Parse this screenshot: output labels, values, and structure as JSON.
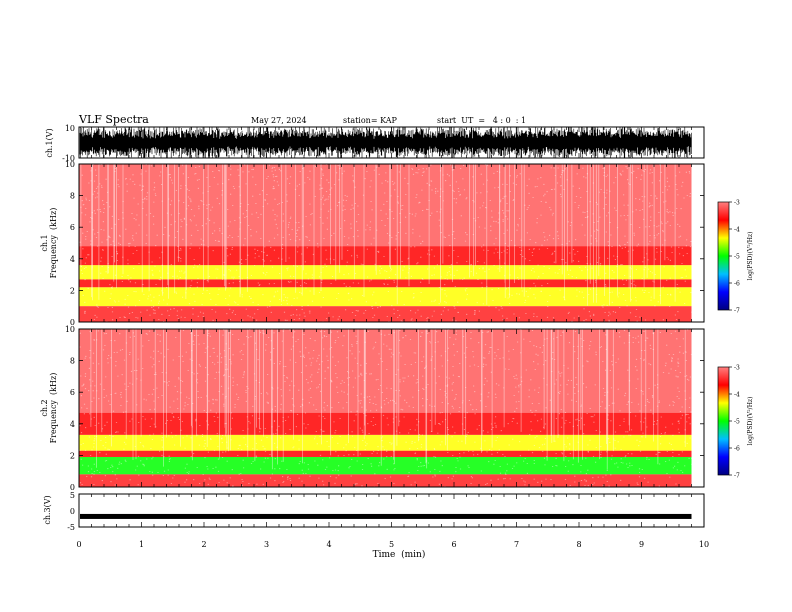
{
  "header": {
    "title": "VLF Spectra",
    "date": "May 27, 2024",
    "station": "station= KAP",
    "start": "start  UT  =   4 : 0  : 1"
  },
  "colors": {
    "spectrogram_stops": [
      "#000080",
      "#0000ff",
      "#00bfff",
      "#00ff00",
      "#ffff00",
      "#ff0000",
      "#ff8080",
      "#ffffff"
    ]
  },
  "chart_data": [
    {
      "type": "line",
      "name": "ch1-waveform",
      "ylabel": "ch.1(V)",
      "yticks": [
        "10",
        "-10"
      ],
      "ylim": [
        -10,
        10
      ],
      "xlim": [
        0,
        10
      ],
      "x_end": 9.8,
      "description_of_signal": "dense noise filling range"
    },
    {
      "type": "heatmap",
      "name": "ch1-spectrogram",
      "ylabel": "ch.1",
      "ylabel2": "Frequency  (kHz)",
      "yticks": [
        "0",
        "2",
        "4",
        "6",
        "8",
        "10"
      ],
      "ylim": [
        0,
        10
      ],
      "xlim": [
        0,
        10
      ],
      "x_end": 9.8,
      "bands": [
        {
          "from": 1.0,
          "to": 2.2,
          "level": -4.5
        },
        {
          "from": 2.2,
          "to": 2.7,
          "level": -4.0
        },
        {
          "from": 2.7,
          "to": 3.6,
          "level": -4.4
        },
        {
          "from": 3.6,
          "to": 4.8,
          "level": -3.9
        },
        {
          "from": 4.8,
          "to": 10.0,
          "level": -3.4
        }
      ],
      "colorbar": {
        "label": "log(PSD)(V²/Hz)",
        "ticks": [
          "-3",
          "-4",
          "-5",
          "-6",
          "-7"
        ],
        "range": [
          -7,
          -3
        ]
      }
    },
    {
      "type": "heatmap",
      "name": "ch2-spectrogram",
      "ylabel": "ch.2",
      "ylabel2": "Frequency  (kHz)",
      "yticks": [
        "0",
        "2",
        "4",
        "6",
        "8",
        "10"
      ],
      "ylim": [
        0,
        10
      ],
      "xlim": [
        0,
        10
      ],
      "x_end": 9.8,
      "bands": [
        {
          "from": 0.8,
          "to": 1.9,
          "level": -4.9
        },
        {
          "from": 1.9,
          "to": 2.3,
          "level": -4.0
        },
        {
          "from": 2.3,
          "to": 3.3,
          "level": -4.5
        },
        {
          "from": 3.3,
          "to": 4.7,
          "level": -3.9
        },
        {
          "from": 4.7,
          "to": 10.0,
          "level": -3.4
        }
      ],
      "colorbar": {
        "label": "log(PSD)(V²/Hz)",
        "ticks": [
          "-3",
          "-4",
          "-5",
          "-6",
          "-7"
        ],
        "range": [
          -7,
          -3
        ]
      }
    },
    {
      "type": "line",
      "name": "ch3-waveform",
      "ylabel": "ch.3(V)",
      "yticks": [
        "5",
        "0",
        "-5"
      ],
      "ylim": [
        -5,
        5
      ],
      "xlim": [
        0,
        10
      ],
      "x_end": 9.8,
      "level": -1.8
    }
  ],
  "xaxis": {
    "label": "Time  (min)",
    "ticks": [
      "0",
      "1",
      "2",
      "3",
      "4",
      "5",
      "6",
      "7",
      "8",
      "9",
      "10"
    ]
  }
}
